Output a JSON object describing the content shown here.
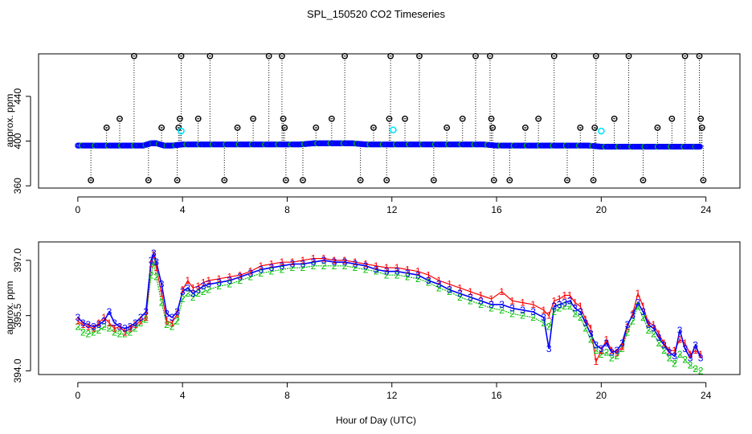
{
  "figure_title": "SPL_150520  CO2 Timeseries",
  "xlabel": "Hour of Day (UTC)",
  "colors": {
    "series_blue": "#0000ff",
    "series_red": "#ff0000",
    "series_green": "#00c000",
    "outlier_cyan": "#00e5ff",
    "outlier_black": "#000000",
    "line_blue": "#0000ff"
  },
  "chart_data": [
    {
      "type": "scatter",
      "title": "",
      "ylabel": "approx. ppm",
      "xlim": [
        -1.5,
        25.3
      ],
      "ylim": [
        358,
        478
      ],
      "xticks": [
        0,
        4,
        8,
        12,
        16,
        20,
        24
      ],
      "yticks": [
        360,
        400,
        440
      ],
      "ytick_labels": [
        "360",
        "400",
        "440"
      ],
      "baseline_series": {
        "name": "CO2 (raw points)",
        "x": [
          0.0,
          0.5,
          1.0,
          1.5,
          2.0,
          2.5,
          2.8,
          3.0,
          3.3,
          3.6,
          4.0,
          4.5,
          5.0,
          5.5,
          6.0,
          6.5,
          7.0,
          7.5,
          8.0,
          8.5,
          9.0,
          9.5,
          10.0,
          10.5,
          11.0,
          11.5,
          12.0,
          12.5,
          13.0,
          13.5,
          14.0,
          14.5,
          15.0,
          15.5,
          16.0,
          16.5,
          17.0,
          17.5,
          18.0,
          18.5,
          19.0,
          19.5,
          20.0,
          20.5,
          21.0,
          21.5,
          22.0,
          22.5,
          23.0,
          23.5,
          23.8
        ],
        "values": [
          396,
          396,
          396,
          396,
          396,
          396,
          398,
          398,
          396,
          396,
          397,
          397,
          397,
          397,
          397,
          397,
          397,
          397,
          397,
          397,
          398,
          398,
          398,
          398,
          397,
          397,
          397,
          397,
          397,
          397,
          397,
          397,
          397,
          397,
          396,
          396,
          396,
          396,
          396,
          396,
          396,
          396,
          395,
          395,
          395,
          395,
          395,
          395,
          395,
          395,
          395
        ]
      },
      "outliers": {
        "x": [
          0.5,
          1.1,
          1.6,
          2.15,
          2.7,
          3.2,
          3.8,
          3.85,
          3.9,
          3.95,
          4.6,
          5.05,
          5.6,
          6.1,
          6.7,
          7.3,
          7.8,
          7.85,
          7.9,
          7.95,
          8.6,
          9.1,
          9.7,
          10.2,
          10.8,
          11.3,
          11.8,
          11.9,
          11.95,
          12.5,
          13.05,
          13.6,
          14.1,
          14.7,
          15.2,
          15.75,
          15.8,
          15.85,
          15.9,
          16.5,
          17.1,
          17.6,
          18.2,
          18.7,
          19.2,
          19.7,
          19.75,
          19.8,
          20.5,
          21.05,
          21.6,
          22.15,
          22.7,
          23.2,
          23.75,
          23.8,
          23.85,
          23.9
        ],
        "values": [
          365,
          412,
          420,
          476,
          365,
          412,
          365,
          412,
          420,
          476,
          420,
          476,
          365,
          412,
          420,
          476,
          476,
          420,
          412,
          365,
          365,
          412,
          420,
          476,
          365,
          412,
          365,
          420,
          476,
          420,
          476,
          365,
          412,
          420,
          476,
          476,
          420,
          412,
          365,
          365,
          412,
          420,
          476,
          365,
          412,
          365,
          412,
          476,
          420,
          476,
          365,
          412,
          420,
          476,
          476,
          420,
          412,
          365
        ]
      },
      "cyan_flags": {
        "x": [
          3.95,
          12.05,
          20.0
        ],
        "values": [
          409,
          410,
          409
        ]
      }
    },
    {
      "type": "line",
      "title": "",
      "ylabel": "approx. ppm",
      "xlim": [
        -1.5,
        25.3
      ],
      "ylim": [
        393.9,
        397.5
      ],
      "xticks": [
        0,
        4,
        8,
        12,
        16,
        20,
        24
      ],
      "yticks": [
        394.0,
        395.5,
        397.0
      ],
      "ytick_labels": [
        "394.0",
        "395.5",
        "397.0"
      ],
      "x": [
        0.0,
        0.2,
        0.4,
        0.6,
        0.8,
        1.0,
        1.2,
        1.4,
        1.6,
        1.8,
        2.0,
        2.2,
        2.4,
        2.6,
        2.8,
        2.9,
        3.0,
        3.2,
        3.4,
        3.6,
        3.8,
        4.0,
        4.2,
        4.4,
        4.6,
        4.8,
        5.0,
        5.4,
        5.8,
        6.2,
        6.6,
        7.0,
        7.4,
        7.8,
        8.2,
        8.6,
        9.0,
        9.4,
        9.8,
        10.2,
        10.6,
        11.0,
        11.4,
        11.8,
        12.2,
        12.6,
        13.0,
        13.4,
        13.8,
        14.2,
        14.6,
        15.0,
        15.4,
        15.8,
        16.2,
        16.6,
        17.0,
        17.4,
        17.8,
        18.0,
        18.2,
        18.4,
        18.6,
        18.8,
        19.0,
        19.2,
        19.4,
        19.6,
        19.8,
        20.0,
        20.2,
        20.4,
        20.6,
        20.8,
        21.0,
        21.2,
        21.4,
        21.6,
        21.8,
        22.0,
        22.2,
        22.4,
        22.6,
        22.8,
        23.0,
        23.2,
        23.4,
        23.6,
        23.8
      ],
      "series": [
        {
          "name": "1",
          "labels": "1",
          "values": [
            395.35,
            395.25,
            395.2,
            395.15,
            395.3,
            395.45,
            395.3,
            395.15,
            395.2,
            395.05,
            395.15,
            395.25,
            395.35,
            395.45,
            396.9,
            397.15,
            396.8,
            396.1,
            395.35,
            395.3,
            395.55,
            396.2,
            396.45,
            396.25,
            396.3,
            396.4,
            396.45,
            396.5,
            396.55,
            396.6,
            396.7,
            396.85,
            396.9,
            396.95,
            396.95,
            397.0,
            397.05,
            397.05,
            397.0,
            397.0,
            396.95,
            396.9,
            396.85,
            396.8,
            396.8,
            396.75,
            396.7,
            396.6,
            396.45,
            396.35,
            396.25,
            396.15,
            396.05,
            395.95,
            396.15,
            395.9,
            395.85,
            395.8,
            395.65,
            395.5,
            395.9,
            395.95,
            396.05,
            396.05,
            395.85,
            395.75,
            395.4,
            395.15,
            394.25,
            394.55,
            394.85,
            394.55,
            394.5,
            394.65,
            395.2,
            395.55,
            396.1,
            395.75,
            395.3,
            395.25,
            395.0,
            394.75,
            394.55,
            394.55,
            394.85,
            394.75,
            394.45,
            394.55,
            394.45
          ]
        },
        {
          "name": "2",
          "labels": "2",
          "values": [
            395.2,
            395.05,
            395.0,
            395.05,
            395.1,
            395.2,
            395.15,
            395.05,
            395.0,
            395.0,
            395.05,
            395.15,
            395.3,
            395.4,
            396.6,
            396.95,
            396.55,
            395.85,
            395.25,
            395.2,
            395.35,
            395.95,
            396.1,
            396.0,
            396.1,
            396.15,
            396.2,
            396.3,
            396.35,
            396.45,
            396.55,
            396.65,
            396.7,
            396.75,
            396.8,
            396.8,
            396.85,
            396.85,
            396.85,
            396.85,
            396.8,
            396.75,
            396.7,
            396.6,
            396.6,
            396.55,
            396.5,
            396.4,
            396.25,
            396.15,
            396.0,
            395.9,
            395.8,
            395.7,
            395.65,
            395.55,
            395.5,
            395.45,
            395.3,
            395.2,
            395.6,
            395.7,
            395.75,
            395.75,
            395.55,
            395.45,
            395.15,
            394.85,
            394.55,
            394.45,
            394.5,
            394.35,
            394.4,
            394.6,
            395.05,
            395.35,
            395.75,
            395.45,
            395.1,
            395.0,
            394.75,
            394.55,
            394.35,
            394.2,
            394.45,
            394.3,
            394.15,
            394.05,
            394.0
          ]
        },
        {
          "name": "3",
          "labels": "3",
          "values": [
            395.45,
            395.3,
            395.25,
            395.2,
            395.25,
            395.35,
            395.6,
            395.3,
            395.2,
            395.15,
            395.2,
            395.3,
            395.45,
            395.6,
            397.0,
            397.2,
            396.95,
            396.35,
            395.55,
            395.45,
            395.6,
            396.15,
            396.25,
            396.1,
            396.2,
            396.3,
            396.35,
            396.4,
            396.45,
            396.55,
            396.65,
            396.75,
            396.8,
            396.85,
            396.9,
            396.9,
            396.95,
            397.0,
            396.95,
            396.95,
            396.9,
            396.85,
            396.75,
            396.7,
            396.7,
            396.65,
            396.6,
            396.45,
            396.35,
            396.2,
            396.1,
            396.0,
            395.9,
            395.8,
            395.8,
            395.7,
            395.65,
            395.6,
            395.45,
            394.6,
            395.75,
            395.8,
            395.85,
            395.9,
            395.7,
            395.6,
            395.3,
            395.0,
            394.7,
            394.6,
            394.75,
            394.5,
            394.55,
            394.75,
            395.25,
            395.5,
            395.85,
            395.6,
            395.25,
            395.15,
            394.9,
            394.7,
            394.5,
            394.4,
            395.1,
            394.6,
            394.35,
            394.7,
            394.35
          ]
        }
      ]
    }
  ]
}
